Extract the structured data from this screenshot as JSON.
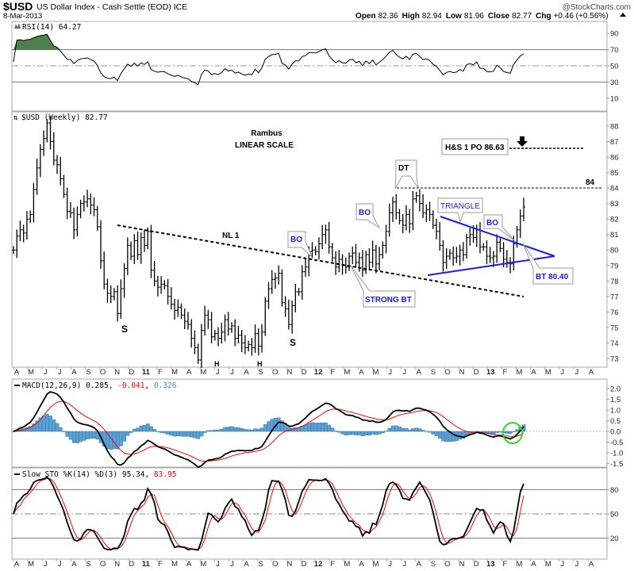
{
  "header": {
    "symbol": "$USD",
    "name": "US Dollar Index - Cash Settle (EOD) ICE",
    "brand": "@StockCharts.com",
    "date": "8-Mar-2013",
    "open_label": "Open",
    "open": "82.36",
    "high_label": "High",
    "high": "82.94",
    "low_label": "Low",
    "low": "81.96",
    "close_label": "Close",
    "close": "82.77",
    "chg_label": "Chg",
    "chg": "+0.46 (+0.56%)"
  },
  "colors": {
    "price": "#000000",
    "signal": "#ff0000",
    "hist": "#5aa0d2",
    "overbought": "#4f7f4f",
    "circle": "#22dd22",
    "annotation": "#1a1aff"
  },
  "chart_data": [
    {
      "type": "line",
      "panel": "rsi",
      "title": "RSI(14) 64.27",
      "yticks": [
        90,
        70,
        50,
        30,
        10
      ],
      "ylim": [
        0,
        100
      ],
      "reference_lines": [
        70,
        50,
        30
      ]
    },
    {
      "type": "ohlc",
      "panel": "price",
      "title": "$USD (Weekly) 82.77",
      "frequency": "weekly",
      "start": "2010-04-02",
      "end": "2013-03-08",
      "yticks": [
        88,
        87,
        86,
        85,
        84,
        83,
        82,
        81,
        80,
        79,
        78,
        77,
        76,
        75,
        74,
        73
      ],
      "ylim": [
        72.7,
        88.8
      ],
      "closes": [
        80.0,
        80.9,
        81.3,
        81.1,
        82.0,
        82.3,
        83.9,
        85.3,
        86.5,
        87.2,
        88.2,
        87.0,
        85.8,
        85.5,
        84.6,
        83.6,
        82.5,
        82.4,
        81.3,
        82.3,
        83.0,
        83.1,
        83.3,
        82.9,
        82.6,
        81.5,
        79.3,
        77.8,
        77.2,
        77.0,
        77.3,
        75.9,
        77.5,
        78.8,
        80.3,
        79.6,
        80.6,
        79.7,
        80.8,
        80.3,
        81.2,
        78.7,
        78.0,
        77.6,
        77.8,
        77.7,
        77.0,
        76.5,
        76.1,
        76.3,
        75.8,
        75.4,
        75.2,
        74.3,
        73.7,
        72.9,
        74.8,
        75.8,
        75.5,
        74.4,
        74.6,
        74.3,
        74.7,
        75.5,
        74.9,
        75.1,
        74.3,
        74.5,
        74.0,
        73.7,
        73.9,
        73.7,
        74.6,
        73.8,
        74.7,
        76.7,
        77.5,
        78.1,
        78.2,
        78.5,
        76.6,
        76.2,
        75.2,
        76.4,
        77.3,
        77.3,
        78.6,
        78.9,
        79.9,
        80.0,
        79.9,
        80.4,
        81.0,
        81.3,
        80.2,
        79.5,
        78.9,
        79.4,
        79.0,
        78.9,
        79.6,
        79.8,
        79.2,
        79.5,
        78.7,
        79.7,
        79.2,
        80.0,
        79.1,
        79.7,
        80.3,
        81.2,
        82.4,
        83.1,
        82.4,
        81.9,
        81.6,
        82.3,
        81.7,
        83.3,
        83.5,
        83.0,
        82.4,
        82.6,
        82.3,
        81.6,
        81.2,
        80.3,
        79.2,
        79.6,
        79.8,
        79.5,
        79.6,
        80.0,
        79.7,
        80.8,
        81.0,
        80.8,
        81.3,
        80.2,
        80.2,
        79.6,
        79.5,
        79.6,
        80.5,
        80.1,
        79.4,
        79.2,
        79.1,
        80.4,
        81.3,
        82.2,
        82.77
      ],
      "annotations": {
        "author": "Rambus",
        "scale": "LINEAR SCALE",
        "neckline": "NL 1",
        "bo1": "BO",
        "bo2": "BO",
        "bo3": "BO",
        "dt": "DT",
        "triangle": "TRIANGLE",
        "strong_bt": "STRONG BT",
        "bt": "BT 80.40",
        "po": "H&S 1 PO 86.63",
        "level84": "84",
        "s1": "S",
        "h1": "H",
        "h2": "H",
        "s2": "S"
      },
      "levels": {
        "price_objective": 86.63,
        "double_top": 84,
        "backtest": 80.4
      }
    },
    {
      "type": "line+bar",
      "panel": "macd",
      "title": "MACD(12,26,9)",
      "values_text": [
        "0.285",
        "-0.041",
        "0.326"
      ],
      "yticks": [
        "2.0",
        "1.5",
        "1.0",
        "0.5",
        "0.0",
        "-0.5",
        "-1.0",
        "-1.5"
      ],
      "ylim": [
        -1.75,
        2.25
      ]
    },
    {
      "type": "line",
      "panel": "slow-sto",
      "title": "Slow STO %K(14) %D(3)",
      "values_text": [
        "95.34",
        "83.95"
      ],
      "yticks": [
        80,
        50,
        20
      ],
      "ylim": [
        -5,
        105
      ]
    }
  ],
  "xaxis": {
    "months": [
      "A",
      "M",
      "J",
      "J",
      "A",
      "S",
      "O",
      "N",
      "D",
      "11",
      "F",
      "M",
      "A",
      "M",
      "J",
      "J",
      "A",
      "S",
      "O",
      "N",
      "D",
      "12",
      "F",
      "M",
      "A",
      "M",
      "J",
      "J",
      "A",
      "S",
      "O",
      "N",
      "D",
      "13",
      "F",
      "M",
      "A",
      "M",
      "J",
      "J",
      "A"
    ]
  }
}
